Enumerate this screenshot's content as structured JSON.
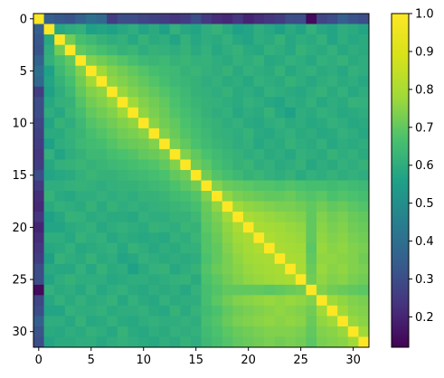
{
  "chart_data": {
    "type": "heatmap",
    "colormap": "viridis",
    "grid": false,
    "rows": 32,
    "cols": 32,
    "xticks": [
      0,
      5,
      10,
      15,
      20,
      25,
      30
    ],
    "yticks": [
      0,
      5,
      10,
      15,
      20,
      25,
      30
    ],
    "x_tick_labels": [
      "0",
      "5",
      "10",
      "15",
      "20",
      "25",
      "30"
    ],
    "y_tick_labels": [
      "0",
      "5",
      "10",
      "15",
      "20",
      "25",
      "30"
    ],
    "colorbar": {
      "range": [
        0.12,
        1.0
      ],
      "ticks": [
        0.2,
        0.3,
        0.4,
        0.5,
        0.6,
        0.7,
        0.8,
        0.9,
        1.0
      ],
      "tick_labels": [
        "0.2",
        "0.3",
        "0.4",
        "0.5",
        "0.6",
        "0.7",
        "0.8",
        "0.9",
        "1.0"
      ]
    },
    "values": [
      [
        1.0,
        0.35,
        0.33,
        0.32,
        0.36,
        0.4,
        0.38,
        0.26,
        0.3,
        0.3,
        0.28,
        0.27,
        0.26,
        0.24,
        0.26,
        0.3,
        0.25,
        0.22,
        0.21,
        0.24,
        0.2,
        0.22,
        0.24,
        0.26,
        0.3,
        0.3,
        0.14,
        0.28,
        0.3,
        0.35,
        0.32,
        0.3
      ],
      [
        0.35,
        1.0,
        0.58,
        0.6,
        0.61,
        0.56,
        0.57,
        0.56,
        0.58,
        0.6,
        0.57,
        0.59,
        0.56,
        0.61,
        0.58,
        0.57,
        0.6,
        0.62,
        0.59,
        0.56,
        0.57,
        0.6,
        0.58,
        0.56,
        0.59,
        0.57,
        0.61,
        0.58,
        0.57,
        0.6,
        0.59,
        0.57
      ],
      [
        0.33,
        0.58,
        1.0,
        0.72,
        0.66,
        0.64,
        0.62,
        0.6,
        0.61,
        0.58,
        0.62,
        0.59,
        0.6,
        0.57,
        0.61,
        0.58,
        0.6,
        0.59,
        0.61,
        0.58,
        0.57,
        0.6,
        0.59,
        0.62,
        0.58,
        0.6,
        0.59,
        0.61,
        0.57,
        0.6,
        0.58,
        0.59
      ],
      [
        0.32,
        0.6,
        0.72,
        1.0,
        0.7,
        0.68,
        0.66,
        0.64,
        0.62,
        0.63,
        0.6,
        0.62,
        0.61,
        0.6,
        0.62,
        0.59,
        0.61,
        0.58,
        0.6,
        0.62,
        0.59,
        0.58,
        0.61,
        0.6,
        0.58,
        0.62,
        0.6,
        0.59,
        0.61,
        0.58,
        0.6,
        0.59
      ],
      [
        0.36,
        0.61,
        0.66,
        0.7,
        1.0,
        0.74,
        0.72,
        0.7,
        0.68,
        0.66,
        0.64,
        0.63,
        0.64,
        0.62,
        0.63,
        0.61,
        0.62,
        0.6,
        0.59,
        0.61,
        0.6,
        0.62,
        0.58,
        0.59,
        0.61,
        0.6,
        0.58,
        0.61,
        0.6,
        0.62,
        0.59,
        0.6
      ],
      [
        0.4,
        0.56,
        0.64,
        0.68,
        0.74,
        1.0,
        0.78,
        0.74,
        0.72,
        0.7,
        0.68,
        0.66,
        0.65,
        0.64,
        0.62,
        0.63,
        0.61,
        0.6,
        0.62,
        0.59,
        0.61,
        0.6,
        0.59,
        0.62,
        0.58,
        0.6,
        0.61,
        0.59,
        0.6,
        0.58,
        0.61,
        0.6
      ],
      [
        0.38,
        0.57,
        0.62,
        0.66,
        0.72,
        0.78,
        1.0,
        0.76,
        0.74,
        0.72,
        0.7,
        0.68,
        0.66,
        0.64,
        0.63,
        0.62,
        0.6,
        0.61,
        0.59,
        0.6,
        0.58,
        0.61,
        0.6,
        0.59,
        0.62,
        0.6,
        0.58,
        0.6,
        0.61,
        0.59,
        0.6,
        0.58
      ],
      [
        0.26,
        0.56,
        0.6,
        0.64,
        0.7,
        0.74,
        0.76,
        1.0,
        0.77,
        0.74,
        0.72,
        0.7,
        0.68,
        0.66,
        0.64,
        0.62,
        0.61,
        0.6,
        0.62,
        0.59,
        0.6,
        0.58,
        0.61,
        0.6,
        0.59,
        0.58,
        0.6,
        0.62,
        0.59,
        0.61,
        0.58,
        0.6
      ],
      [
        0.3,
        0.58,
        0.61,
        0.62,
        0.68,
        0.72,
        0.74,
        0.77,
        1.0,
        0.78,
        0.74,
        0.72,
        0.7,
        0.67,
        0.65,
        0.63,
        0.62,
        0.61,
        0.6,
        0.59,
        0.61,
        0.6,
        0.58,
        0.57,
        0.6,
        0.59,
        0.61,
        0.58,
        0.6,
        0.59,
        0.62,
        0.61
      ],
      [
        0.3,
        0.6,
        0.58,
        0.63,
        0.66,
        0.7,
        0.72,
        0.74,
        0.78,
        1.0,
        0.76,
        0.73,
        0.71,
        0.68,
        0.66,
        0.64,
        0.62,
        0.6,
        0.61,
        0.58,
        0.6,
        0.59,
        0.62,
        0.58,
        0.56,
        0.6,
        0.59,
        0.61,
        0.6,
        0.58,
        0.59,
        0.6
      ],
      [
        0.28,
        0.57,
        0.62,
        0.6,
        0.64,
        0.68,
        0.7,
        0.72,
        0.74,
        0.76,
        1.0,
        0.75,
        0.72,
        0.7,
        0.67,
        0.65,
        0.63,
        0.62,
        0.6,
        0.61,
        0.59,
        0.58,
        0.6,
        0.61,
        0.59,
        0.6,
        0.58,
        0.59,
        0.61,
        0.6,
        0.58,
        0.59
      ],
      [
        0.27,
        0.59,
        0.59,
        0.62,
        0.63,
        0.66,
        0.68,
        0.7,
        0.72,
        0.73,
        0.75,
        1.0,
        0.74,
        0.71,
        0.68,
        0.66,
        0.64,
        0.62,
        0.61,
        0.6,
        0.62,
        0.59,
        0.58,
        0.6,
        0.61,
        0.59,
        0.6,
        0.58,
        0.59,
        0.61,
        0.6,
        0.58
      ],
      [
        0.26,
        0.56,
        0.6,
        0.61,
        0.64,
        0.65,
        0.66,
        0.68,
        0.7,
        0.71,
        0.72,
        0.74,
        1.0,
        0.73,
        0.7,
        0.67,
        0.65,
        0.63,
        0.62,
        0.6,
        0.61,
        0.58,
        0.6,
        0.59,
        0.62,
        0.6,
        0.59,
        0.61,
        0.58,
        0.6,
        0.59,
        0.6
      ],
      [
        0.24,
        0.61,
        0.57,
        0.6,
        0.62,
        0.64,
        0.64,
        0.66,
        0.67,
        0.68,
        0.7,
        0.71,
        0.73,
        1.0,
        0.74,
        0.7,
        0.67,
        0.65,
        0.63,
        0.62,
        0.6,
        0.61,
        0.59,
        0.6,
        0.58,
        0.61,
        0.6,
        0.59,
        0.62,
        0.6,
        0.61,
        0.59
      ],
      [
        0.26,
        0.58,
        0.61,
        0.62,
        0.63,
        0.62,
        0.63,
        0.64,
        0.65,
        0.66,
        0.67,
        0.68,
        0.7,
        0.74,
        1.0,
        0.72,
        0.69,
        0.66,
        0.64,
        0.62,
        0.63,
        0.6,
        0.61,
        0.59,
        0.6,
        0.62,
        0.58,
        0.6,
        0.59,
        0.61,
        0.6,
        0.62
      ],
      [
        0.3,
        0.57,
        0.58,
        0.59,
        0.61,
        0.63,
        0.62,
        0.62,
        0.63,
        0.64,
        0.65,
        0.66,
        0.67,
        0.7,
        0.72,
        1.0,
        0.72,
        0.68,
        0.66,
        0.64,
        0.62,
        0.63,
        0.61,
        0.6,
        0.62,
        0.59,
        0.61,
        0.6,
        0.62,
        0.6,
        0.61,
        0.6
      ],
      [
        0.25,
        0.6,
        0.6,
        0.61,
        0.62,
        0.61,
        0.6,
        0.61,
        0.62,
        0.62,
        0.63,
        0.64,
        0.65,
        0.67,
        0.69,
        0.72,
        1.0,
        0.74,
        0.71,
        0.7,
        0.69,
        0.68,
        0.68,
        0.67,
        0.68,
        0.67,
        0.66,
        0.66,
        0.65,
        0.66,
        0.65,
        0.64
      ],
      [
        0.22,
        0.62,
        0.59,
        0.58,
        0.6,
        0.6,
        0.61,
        0.6,
        0.61,
        0.6,
        0.62,
        0.62,
        0.63,
        0.65,
        0.66,
        0.68,
        0.74,
        1.0,
        0.76,
        0.73,
        0.72,
        0.71,
        0.7,
        0.7,
        0.71,
        0.69,
        0.68,
        0.69,
        0.67,
        0.68,
        0.67,
        0.66
      ],
      [
        0.21,
        0.59,
        0.61,
        0.6,
        0.59,
        0.62,
        0.59,
        0.62,
        0.6,
        0.61,
        0.6,
        0.61,
        0.62,
        0.63,
        0.64,
        0.66,
        0.71,
        0.76,
        1.0,
        0.78,
        0.76,
        0.75,
        0.74,
        0.73,
        0.73,
        0.72,
        0.7,
        0.72,
        0.7,
        0.71,
        0.69,
        0.68
      ],
      [
        0.24,
        0.56,
        0.58,
        0.62,
        0.61,
        0.59,
        0.6,
        0.59,
        0.59,
        0.58,
        0.61,
        0.6,
        0.6,
        0.62,
        0.62,
        0.64,
        0.7,
        0.73,
        0.78,
        1.0,
        0.8,
        0.78,
        0.77,
        0.76,
        0.75,
        0.74,
        0.7,
        0.74,
        0.72,
        0.73,
        0.71,
        0.7
      ],
      [
        0.2,
        0.57,
        0.57,
        0.59,
        0.6,
        0.61,
        0.58,
        0.6,
        0.61,
        0.6,
        0.59,
        0.62,
        0.61,
        0.6,
        0.63,
        0.62,
        0.69,
        0.72,
        0.76,
        0.8,
        1.0,
        0.8,
        0.79,
        0.78,
        0.77,
        0.76,
        0.7,
        0.75,
        0.73,
        0.74,
        0.72,
        0.71
      ],
      [
        0.22,
        0.6,
        0.6,
        0.58,
        0.62,
        0.6,
        0.61,
        0.58,
        0.6,
        0.59,
        0.58,
        0.59,
        0.58,
        0.61,
        0.6,
        0.63,
        0.68,
        0.71,
        0.75,
        0.78,
        0.8,
        1.0,
        0.81,
        0.79,
        0.78,
        0.77,
        0.7,
        0.76,
        0.74,
        0.75,
        0.73,
        0.72
      ],
      [
        0.24,
        0.58,
        0.59,
        0.61,
        0.58,
        0.59,
        0.6,
        0.61,
        0.58,
        0.62,
        0.6,
        0.58,
        0.6,
        0.59,
        0.61,
        0.61,
        0.68,
        0.7,
        0.74,
        0.77,
        0.79,
        0.81,
        1.0,
        0.8,
        0.79,
        0.78,
        0.69,
        0.77,
        0.75,
        0.76,
        0.74,
        0.73
      ],
      [
        0.26,
        0.56,
        0.62,
        0.6,
        0.59,
        0.62,
        0.59,
        0.6,
        0.57,
        0.58,
        0.61,
        0.6,
        0.59,
        0.6,
        0.59,
        0.6,
        0.67,
        0.7,
        0.73,
        0.76,
        0.78,
        0.79,
        0.8,
        1.0,
        0.8,
        0.79,
        0.7,
        0.76,
        0.76,
        0.75,
        0.74,
        0.72
      ],
      [
        0.3,
        0.59,
        0.58,
        0.58,
        0.61,
        0.58,
        0.62,
        0.59,
        0.6,
        0.56,
        0.59,
        0.61,
        0.62,
        0.58,
        0.6,
        0.62,
        0.68,
        0.71,
        0.73,
        0.75,
        0.77,
        0.78,
        0.79,
        0.8,
        1.0,
        0.8,
        0.71,
        0.77,
        0.75,
        0.76,
        0.74,
        0.73
      ],
      [
        0.3,
        0.57,
        0.6,
        0.62,
        0.6,
        0.6,
        0.6,
        0.58,
        0.59,
        0.6,
        0.6,
        0.59,
        0.6,
        0.61,
        0.62,
        0.59,
        0.67,
        0.69,
        0.72,
        0.74,
        0.76,
        0.77,
        0.78,
        0.79,
        0.8,
        1.0,
        0.72,
        0.76,
        0.74,
        0.75,
        0.73,
        0.72
      ],
      [
        0.14,
        0.61,
        0.59,
        0.6,
        0.58,
        0.61,
        0.58,
        0.6,
        0.61,
        0.59,
        0.58,
        0.6,
        0.59,
        0.6,
        0.58,
        0.61,
        0.66,
        0.68,
        0.7,
        0.7,
        0.7,
        0.7,
        0.69,
        0.7,
        0.71,
        0.72,
        1.0,
        0.74,
        0.72,
        0.71,
        0.7,
        0.69
      ],
      [
        0.28,
        0.58,
        0.61,
        0.59,
        0.61,
        0.59,
        0.6,
        0.62,
        0.58,
        0.61,
        0.59,
        0.58,
        0.61,
        0.59,
        0.6,
        0.6,
        0.66,
        0.69,
        0.72,
        0.74,
        0.75,
        0.76,
        0.77,
        0.76,
        0.77,
        0.76,
        0.74,
        1.0,
        0.78,
        0.76,
        0.74,
        0.73
      ],
      [
        0.3,
        0.57,
        0.57,
        0.61,
        0.6,
        0.6,
        0.61,
        0.59,
        0.6,
        0.6,
        0.61,
        0.59,
        0.58,
        0.62,
        0.59,
        0.62,
        0.65,
        0.67,
        0.7,
        0.72,
        0.73,
        0.74,
        0.75,
        0.76,
        0.75,
        0.74,
        0.72,
        0.78,
        1.0,
        0.78,
        0.75,
        0.74
      ],
      [
        0.35,
        0.6,
        0.6,
        0.58,
        0.62,
        0.58,
        0.59,
        0.61,
        0.59,
        0.58,
        0.6,
        0.61,
        0.6,
        0.6,
        0.61,
        0.6,
        0.66,
        0.68,
        0.71,
        0.73,
        0.74,
        0.75,
        0.76,
        0.75,
        0.76,
        0.75,
        0.71,
        0.76,
        0.78,
        1.0,
        0.77,
        0.75
      ],
      [
        0.32,
        0.59,
        0.58,
        0.6,
        0.59,
        0.61,
        0.6,
        0.58,
        0.62,
        0.59,
        0.58,
        0.6,
        0.59,
        0.61,
        0.6,
        0.61,
        0.65,
        0.67,
        0.69,
        0.71,
        0.72,
        0.73,
        0.74,
        0.74,
        0.74,
        0.73,
        0.7,
        0.74,
        0.75,
        0.77,
        1.0,
        0.78
      ],
      [
        0.3,
        0.57,
        0.59,
        0.59,
        0.6,
        0.6,
        0.58,
        0.6,
        0.61,
        0.6,
        0.59,
        0.58,
        0.6,
        0.59,
        0.62,
        0.6,
        0.64,
        0.66,
        0.68,
        0.7,
        0.71,
        0.72,
        0.73,
        0.72,
        0.73,
        0.72,
        0.69,
        0.73,
        0.74,
        0.75,
        0.78,
        1.0
      ]
    ]
  }
}
